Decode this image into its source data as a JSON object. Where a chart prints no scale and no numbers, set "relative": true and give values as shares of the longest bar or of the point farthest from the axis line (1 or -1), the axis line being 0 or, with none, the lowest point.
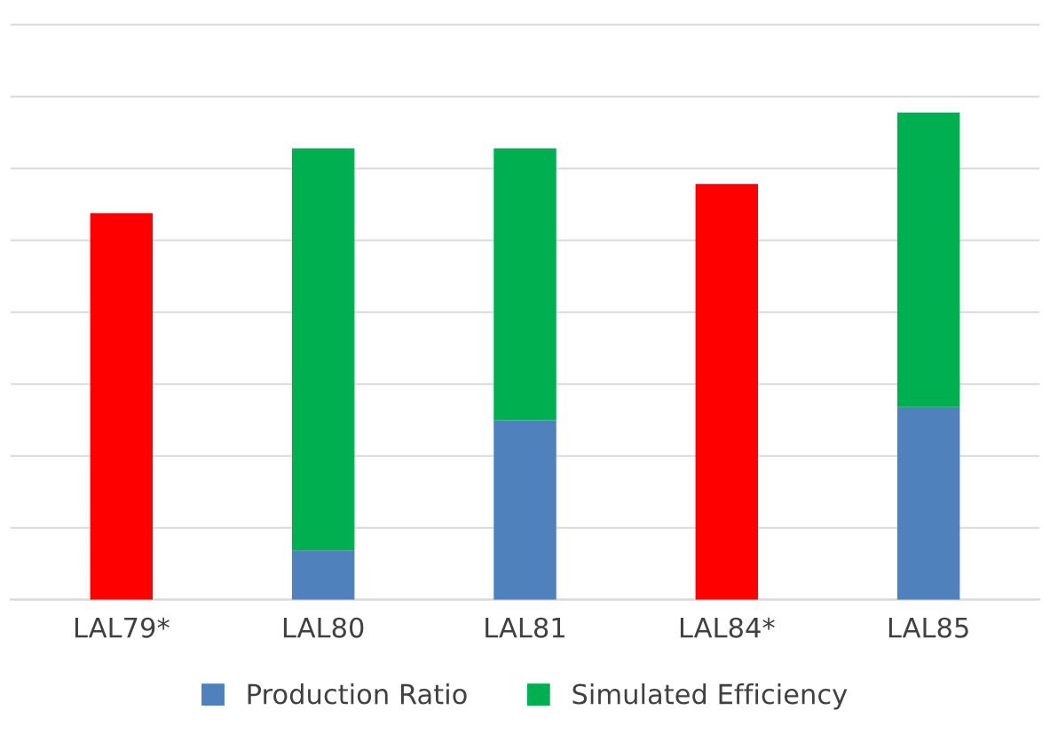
{
  "chart_data": {
    "type": "bar",
    "stacked": true,
    "relative": true,
    "grid": "y",
    "legend": "bottom",
    "categories": [
      "LAL79*",
      "LAL80",
      "LAL81",
      "LAL84*",
      "LAL85"
    ],
    "series": [
      {
        "name": "Production Ratio",
        "color": "#4f81bd",
        "values": [
          null,
          0.101,
          0.368,
          null,
          0.395
        ]
      },
      {
        "name": "Simulated Efficiency",
        "color": "#00b050",
        "values": [
          null,
          0.825,
          0.558,
          null,
          0.605
        ]
      },
      {
        "color": "#ff0000",
        "values": [
          0.793,
          null,
          null,
          0.853,
          null
        ]
      }
    ]
  }
}
